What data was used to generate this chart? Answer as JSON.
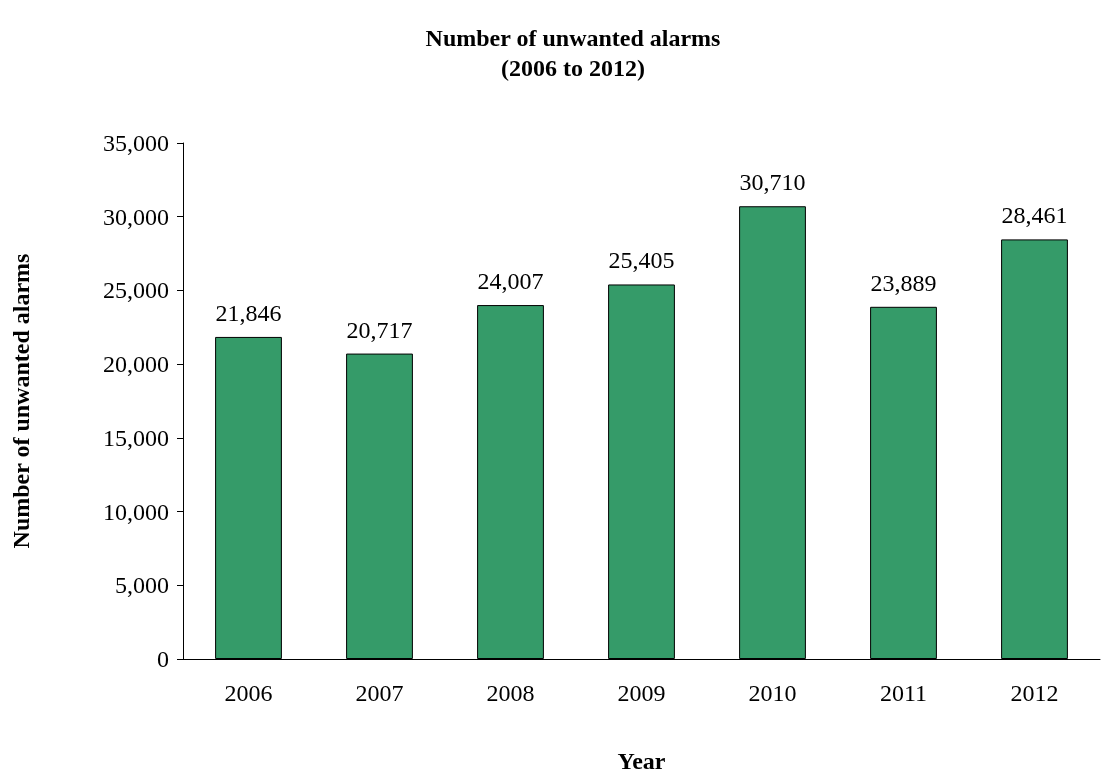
{
  "chart_data": {
    "type": "bar",
    "title": "Number of unwanted alarms\n(2006 to 2012)",
    "xlabel": "Year",
    "ylabel": "Number of unwanted alarms",
    "categories": [
      "2006",
      "2007",
      "2008",
      "2009",
      "2010",
      "2011",
      "2012"
    ],
    "values": [
      21846,
      20717,
      24007,
      25405,
      30710,
      23889,
      28461
    ],
    "value_labels": [
      "21,846",
      "20,717",
      "24,007",
      "25,405",
      "30,710",
      "23,889",
      "28,461"
    ],
    "color": "#359b69",
    "ylim": [
      0,
      35000
    ],
    "yticks": [
      {
        "value": 0,
        "label": "0"
      },
      {
        "value": 5000,
        "label": "5,000"
      },
      {
        "value": 10000,
        "label": "10,000"
      },
      {
        "value": 15000,
        "label": "15,000"
      },
      {
        "value": 20000,
        "label": "20,000"
      },
      {
        "value": 25000,
        "label": "25,000"
      },
      {
        "value": 30000,
        "label": "30,000"
      },
      {
        "value": 35000,
        "label": "35,000"
      }
    ],
    "grid": false
  }
}
